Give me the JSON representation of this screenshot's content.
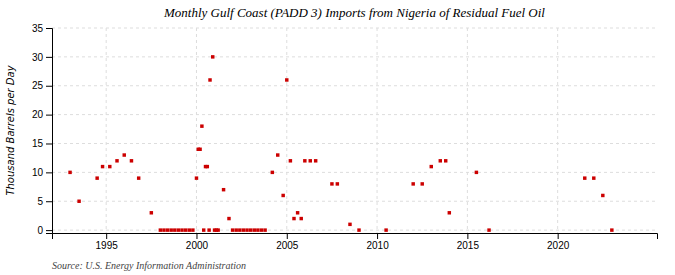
{
  "chart_data": {
    "type": "scatter",
    "title": "Monthly Gulf Coast (PADD 3) Imports from Nigeria of Residual Fuel Oil",
    "ylabel": "Thousand Barrels per Day",
    "annotations": [
      "Source: U.S. Energy Information Administration"
    ],
    "color": "#cc0000",
    "marker": "square",
    "grid": true,
    "xlim": [
      1992.0,
      2025.5
    ],
    "ylim": [
      -0.5,
      35
    ],
    "xticks": [
      1995,
      2000,
      2005,
      2010,
      2015,
      2020
    ],
    "yticks": [
      0,
      5,
      10,
      15,
      20,
      25,
      30,
      35
    ],
    "x": [
      1993.0,
      1993.5,
      1994.5,
      1994.8,
      1995.2,
      1995.6,
      1996.0,
      1996.4,
      1996.8,
      1997.5,
      1998.0,
      1998.2,
      1998.4,
      1998.6,
      1998.8,
      1999.0,
      1999.2,
      1999.4,
      1999.6,
      1999.8,
      2000.0,
      2000.1,
      2000.2,
      2000.3,
      2000.4,
      2000.5,
      2000.6,
      2000.7,
      2000.75,
      2000.9,
      2001.0,
      2001.1,
      2001.2,
      2001.5,
      2001.8,
      2002.0,
      2002.2,
      2002.4,
      2002.6,
      2002.8,
      2003.0,
      2003.2,
      2003.4,
      2003.6,
      2003.8,
      2004.2,
      2004.5,
      2004.8,
      2005.0,
      2005.2,
      2005.4,
      2005.6,
      2005.8,
      2006.0,
      2006.3,
      2006.6,
      2007.5,
      2007.8,
      2008.5,
      2009.0,
      2010.5,
      2012.0,
      2012.5,
      2013.0,
      2013.5,
      2013.8,
      2014.0,
      2015.5,
      2016.2,
      2021.5,
      2022.0,
      2022.5,
      2023.0
    ],
    "values": [
      10.0,
      5.0,
      9.0,
      11.0,
      11.0,
      12.0,
      13.0,
      12.0,
      9.0,
      3.0,
      0.0,
      0.0,
      0.0,
      0.0,
      0.0,
      0.0,
      0.0,
      0.0,
      0.0,
      0.0,
      9.0,
      14.0,
      14.0,
      18.0,
      0.0,
      11.0,
      11.0,
      0.0,
      26.0,
      30.0,
      0.0,
      0.0,
      0.0,
      7.0,
      2.0,
      0.0,
      0.0,
      0.0,
      0.0,
      0.0,
      0.0,
      0.0,
      0.0,
      0.0,
      0.0,
      10.0,
      13.0,
      6.0,
      26.0,
      12.0,
      2.0,
      3.0,
      2.0,
      12.0,
      12.0,
      12.0,
      8.0,
      8.0,
      1.0,
      0.0,
      0.0,
      8.0,
      8.0,
      11.0,
      12.0,
      12.0,
      3.0,
      10.0,
      0.0,
      9.0,
      9.0,
      6.0,
      0.0
    ]
  }
}
